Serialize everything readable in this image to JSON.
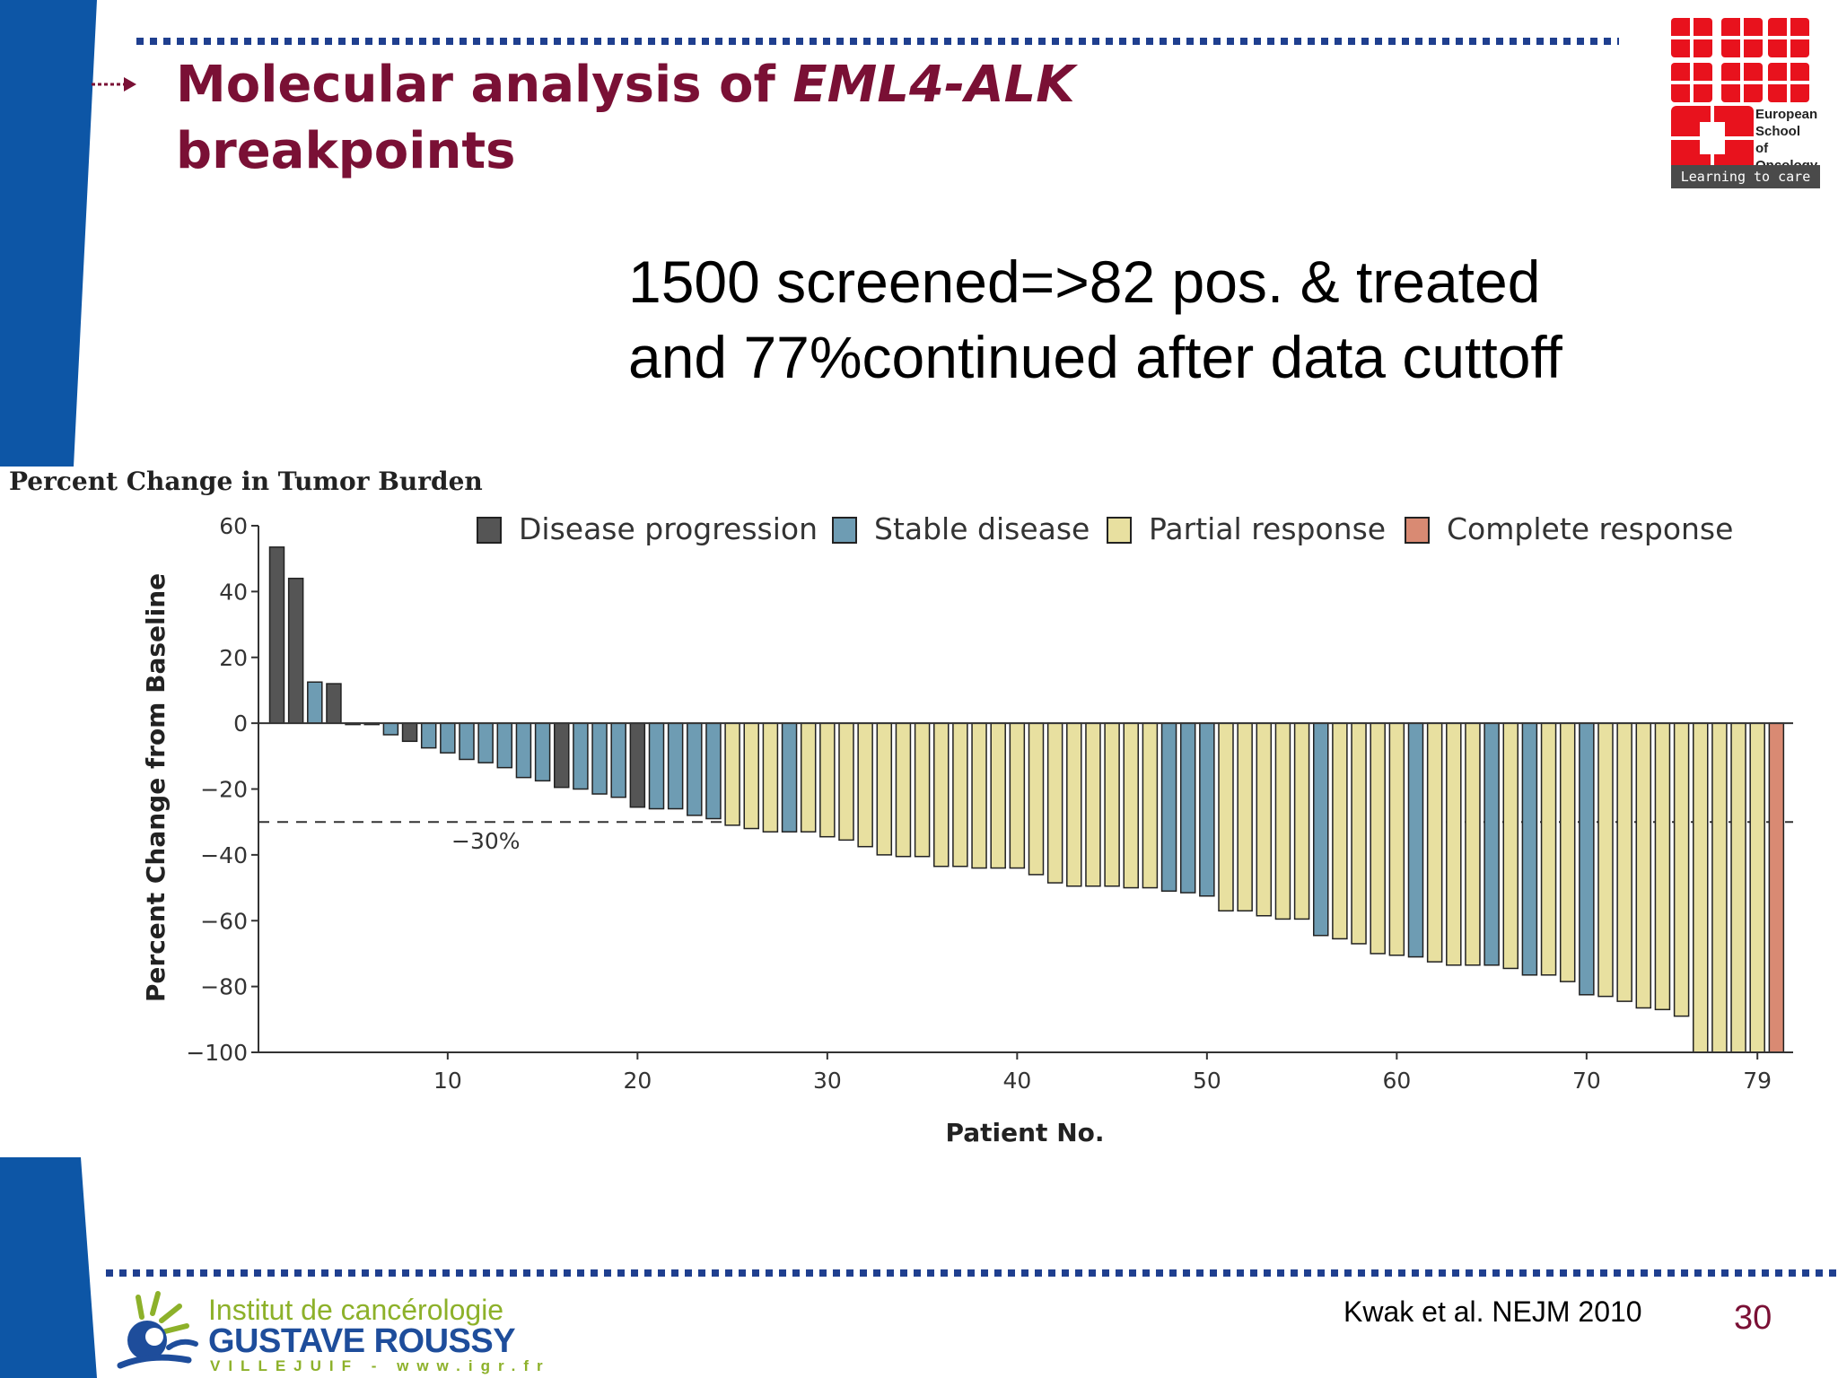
{
  "slide": {
    "title_prefix": "Molecular analysis of ",
    "title_italic": "EML4-ALK",
    "title_line2": "breakpoints",
    "headline_line1": "1500 screened=>82 pos. & treated",
    "headline_line2": "and 77%continued after data cuttoff",
    "citation": "Kwak et al. NEJM 2010",
    "slide_number": "30",
    "eso_logo": {
      "line1": "European",
      "line2": "School",
      "line3": "of",
      "line4": "Oncology",
      "tagline": "Learning to care"
    },
    "gr_logo": {
      "line1": "Institut de cancérologie",
      "line2": "GUSTAVE ROUSSY",
      "line3": "VILLEJUIF - www.igr.fr"
    },
    "colors": {
      "title": "#7a1035",
      "band": "#0d56a6",
      "dots": "#1f3f8f"
    }
  },
  "chart_data": {
    "type": "bar",
    "title": "Percent Change in Tumor Burden",
    "xlabel": "Patient No.",
    "ylabel": "Percent Change from Baseline",
    "ylim": [
      -100,
      60
    ],
    "yticks": [
      "60",
      "40",
      "20",
      "0",
      "−20",
      "−40",
      "−60",
      "−80",
      "−100"
    ],
    "xticks": [
      "10",
      "20",
      "30",
      "40",
      "50",
      "60",
      "70",
      "79"
    ],
    "reference_line": {
      "value": -30,
      "label": "−30%"
    },
    "legend": [
      {
        "key": "PD",
        "label": "Disease progression",
        "color": "#555555"
      },
      {
        "key": "SD",
        "label": "Stable disease",
        "color": "#6e9cb3"
      },
      {
        "key": "PR",
        "label": "Partial response",
        "color": "#e8e0a0"
      },
      {
        "key": "CR",
        "label": "Complete response",
        "color": "#d98a73"
      }
    ],
    "legend_position": "top",
    "values": [
      53.5,
      44,
      12.5,
      12,
      0,
      0,
      -3.5,
      -5.5,
      -7.5,
      -9,
      -11,
      -12,
      -13.5,
      -16.5,
      -17.5,
      -19.5,
      -20,
      -21.5,
      -22.5,
      -25.5,
      -26,
      -26,
      -28,
      -29,
      -31,
      -32,
      -33,
      -33,
      -33,
      -34.5,
      -35.5,
      -37.5,
      -40,
      -40.5,
      -40.5,
      -43.5,
      -43.5,
      -44,
      -44,
      -44,
      -46,
      -48.5,
      -49.5,
      -49.5,
      -49.5,
      -50,
      -50,
      -51,
      -51.5,
      -52.5,
      -57,
      -57,
      -58.5,
      -59.5,
      -59.5,
      -64.5,
      -65.5,
      -67,
      -70,
      -70.5,
      -71,
      -72.5,
      -73.5,
      -73.5,
      -73.5,
      -74.5,
      -76.5,
      -76.5,
      -78.5,
      -82.5,
      -83,
      -84.5,
      -86.5,
      -87,
      -89,
      -100,
      -100,
      -100,
      -100,
      -100
    ],
    "responses": [
      "PD",
      "PD",
      "SD",
      "PD",
      "SD",
      "SD",
      "SD",
      "PD",
      "SD",
      "SD",
      "SD",
      "SD",
      "SD",
      "SD",
      "SD",
      "PD",
      "SD",
      "SD",
      "SD",
      "PD",
      "SD",
      "SD",
      "SD",
      "SD",
      "PR",
      "PR",
      "PR",
      "SD",
      "PR",
      "PR",
      "PR",
      "PR",
      "PR",
      "PR",
      "PR",
      "PR",
      "PR",
      "PR",
      "PR",
      "PR",
      "PR",
      "PR",
      "PR",
      "PR",
      "PR",
      "PR",
      "PR",
      "SD",
      "SD",
      "SD",
      "PR",
      "PR",
      "PR",
      "PR",
      "PR",
      "SD",
      "PR",
      "PR",
      "PR",
      "PR",
      "SD",
      "PR",
      "PR",
      "PR",
      "SD",
      "PR",
      "SD",
      "PR",
      "PR",
      "SD",
      "PR",
      "PR",
      "PR",
      "PR",
      "PR",
      "PR",
      "PR",
      "PR",
      "PR",
      "CR"
    ]
  }
}
